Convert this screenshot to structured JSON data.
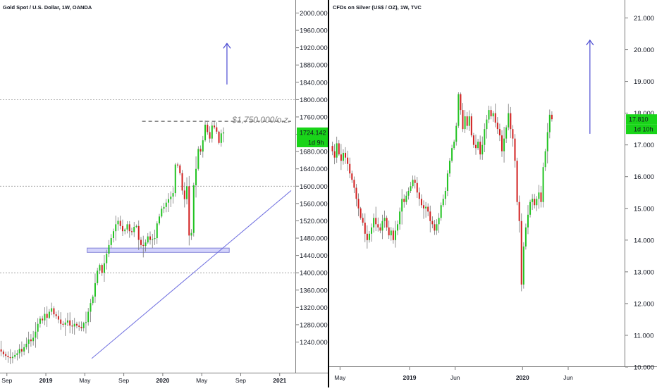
{
  "colors": {
    "up": "#22c322",
    "down": "#d11f1f",
    "badge": "#19d419",
    "arrow": "#4b4bd2",
    "trend": "#7070e0",
    "zone_fill": "#d4d4fb",
    "zone_stroke": "#8484d8",
    "dashed_grid": "#9a9a9a"
  },
  "chart_data": [
    {
      "type": "candlestick",
      "title": "Gold Spot / U.S. Dollar, 1W, OANDA",
      "y_ticks": [
        "2000.000",
        "1960.000",
        "1920.000",
        "1880.000",
        "1840.000",
        "1800.000",
        "1760.000",
        "1720.000",
        "1680.000",
        "1640.000",
        "1600.000",
        "1560.000",
        "1520.000",
        "1480.000",
        "1440.000",
        "1400.000",
        "1360.000",
        "1320.000",
        "1280.000",
        "1240.000"
      ],
      "ylim": [
        1214,
        2016
      ],
      "x_labels": [
        {
          "label": "Sep",
          "week": 3,
          "bold": false
        },
        {
          "label": "2019",
          "week": 20,
          "bold": true
        },
        {
          "label": "May",
          "week": 37,
          "bold": false
        },
        {
          "label": "Sep",
          "week": 54,
          "bold": false
        },
        {
          "label": "2020",
          "week": 71,
          "bold": true
        },
        {
          "label": "May",
          "week": 88,
          "bold": false
        },
        {
          "label": "Sep",
          "week": 105,
          "bold": false
        },
        {
          "label": "2021",
          "week": 122,
          "bold": true
        }
      ],
      "x_range": [
        0,
        127
      ],
      "price_label": "1724.142",
      "countdown_label": "1d 9h",
      "last_price": 1724.142,
      "annotation": "$1,750.000/o.z.",
      "annotation_level": 1750,
      "annotation_line_weeks": [
        62,
        127
      ],
      "dashed_levels": [
        1800,
        1600,
        1400
      ],
      "zone": {
        "from_week": 38,
        "to_week": 100,
        "low": 1447,
        "high": 1457
      },
      "trendline": {
        "from_week": 40,
        "from_price": 1202,
        "to_week": 127,
        "to_price": 1590
      },
      "arrow": {
        "week": 99,
        "from_price": 1835,
        "to_price": 1930
      },
      "weekly_closes": [
        1218,
        1212,
        1208,
        1205,
        1203,
        1206,
        1210,
        1214,
        1224,
        1218,
        1228,
        1236,
        1246,
        1242,
        1250,
        1264,
        1282,
        1294,
        1290,
        1305,
        1296,
        1310,
        1318,
        1304,
        1300,
        1292,
        1282,
        1280,
        1285,
        1290,
        1278,
        1276,
        1282,
        1278,
        1275,
        1272,
        1284,
        1286,
        1310,
        1330,
        1345,
        1376,
        1405,
        1418,
        1400,
        1422,
        1444,
        1464,
        1480,
        1496,
        1512,
        1520,
        1508,
        1496,
        1500,
        1512,
        1496,
        1494,
        1506,
        1508,
        1476,
        1464,
        1462,
        1470,
        1484,
        1476,
        1478,
        1480,
        1514,
        1530,
        1548,
        1552,
        1562,
        1570,
        1576,
        1584,
        1650,
        1648,
        1630,
        1590,
        1570,
        1600,
        1486,
        1492,
        1602,
        1640,
        1686,
        1680,
        1706,
        1742,
        1725,
        1710,
        1740,
        1736,
        1726,
        1700,
        1722,
        1724
      ]
    },
    {
      "type": "candlestick",
      "title": "CFDs on Silver (US$ / OZ), 1W, TVC",
      "y_ticks": [
        "21.000",
        "20.000",
        "19.000",
        "18.000",
        "17.000",
        "16.000",
        "15.000",
        "14.000",
        "13.000",
        "12.000",
        "11.000",
        "10.000"
      ],
      "ylim": [
        9.85,
        21.45
      ],
      "x_labels": [
        {
          "label": "May",
          "week": 4,
          "bold": false
        },
        {
          "label": "2019",
          "week": 36,
          "bold": true
        },
        {
          "label": "Jun",
          "week": 57,
          "bold": false
        },
        {
          "label": "2020",
          "week": 88,
          "bold": true
        },
        {
          "label": "Jun",
          "week": 109,
          "bold": false
        }
      ],
      "x_range": [
        0,
        133
      ],
      "price_label": "17.810",
      "countdown_label": "1d 10h",
      "last_price": 17.81,
      "arrow": {
        "week": 119,
        "from_price": 17.35,
        "to_price": 20.3
      },
      "weekly_closes": [
        16.8,
        16.6,
        17.05,
        16.7,
        16.5,
        16.75,
        16.6,
        16.4,
        16.1,
        15.9,
        15.65,
        15.3,
        15.0,
        14.7,
        14.55,
        14.2,
        14.0,
        14.2,
        14.4,
        14.7,
        14.5,
        14.4,
        14.3,
        14.6,
        14.7,
        14.4,
        14.15,
        14.3,
        14.0,
        14.3,
        14.5,
        14.9,
        15.3,
        15.2,
        15.4,
        15.55,
        15.7,
        15.9,
        15.8,
        15.5,
        15.3,
        15.1,
        15.0,
        15.05,
        14.9,
        14.6,
        14.5,
        14.3,
        14.5,
        14.7,
        15.1,
        15.3,
        15.55,
        16.1,
        16.5,
        16.9,
        17.1,
        17.6,
        18.6,
        18.1,
        17.5,
        17.9,
        17.6,
        17.9,
        17.3,
        17.0,
        16.9,
        17.1,
        16.7,
        17.0,
        17.5,
        17.8,
        18.1,
        17.9,
        18.0,
        17.7,
        17.5,
        17.3,
        16.8,
        17.2,
        17.55,
        18.0,
        17.5,
        17.2,
        16.5,
        15.2,
        14.6,
        12.6,
        13.8,
        14.4,
        14.8,
        15.2,
        15.3,
        15.1,
        15.3,
        15.5,
        15.2,
        16.3,
        16.8,
        17.4,
        17.95,
        17.81
      ]
    }
  ]
}
